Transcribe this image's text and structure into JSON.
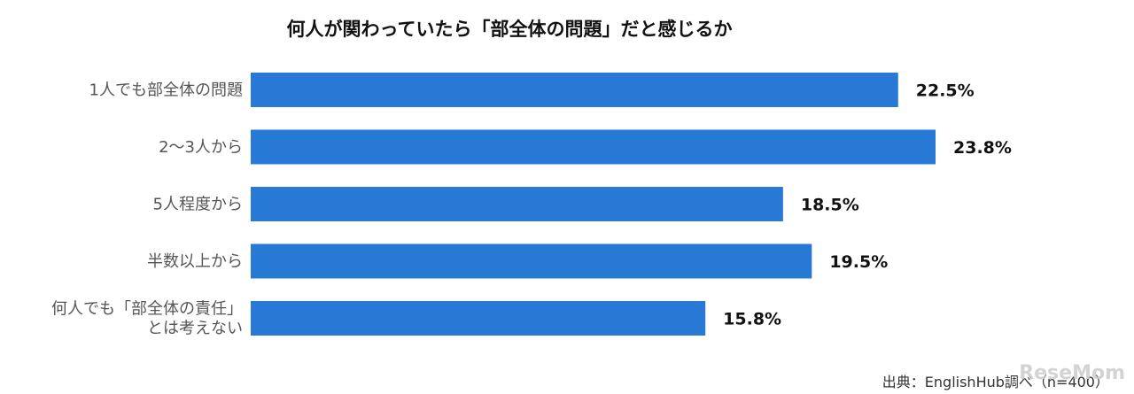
{
  "chart_data": {
    "type": "bar",
    "orientation": "horizontal",
    "title": "何人が関わっていたら「部全体の問題」だと感じるか",
    "categories": [
      [
        "1人でも部全体の問題"
      ],
      [
        "2〜3人から"
      ],
      [
        "5人程度から"
      ],
      [
        "半数以上から"
      ],
      [
        "何人でも「部全体の責任」",
        "とは考えない"
      ]
    ],
    "values": [
      22.5,
      23.8,
      18.5,
      19.5,
      15.8
    ],
    "value_labels": [
      "22.5%",
      "23.8%",
      "18.5%",
      "19.5%",
      "15.8%"
    ],
    "unit": "%",
    "xlim": [
      0,
      23.8
    ],
    "grid": false,
    "legend": "none",
    "bar_color": "#2878d6"
  },
  "source": "出典：EnglishHub調べ（n=400）",
  "watermark": "ReseMom"
}
